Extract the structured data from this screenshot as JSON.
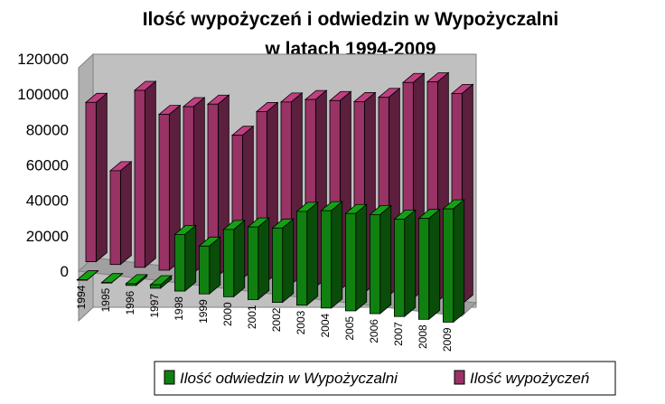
{
  "chart_data": {
    "type": "bar",
    "title_lines": [
      "Ilość wypożyczeń i odwiedzin w Wypożyczalni",
      "w latach 1994-2009"
    ],
    "categories": [
      "1994",
      "1995",
      "1996",
      "1997",
      "1998",
      "1999",
      "2000",
      "2001",
      "2002",
      "2003",
      "2004",
      "2005",
      "2006",
      "2007",
      "2008",
      "2009"
    ],
    "y_ticks": [
      "0",
      "20000",
      "40000",
      "60000",
      "80000",
      "100000",
      "120000"
    ],
    "ylim": [
      0,
      120000
    ],
    "series": [
      {
        "name": "Ilość odwiedzin w Wypożyczalni",
        "color": "#108010",
        "values": [
          0,
          0,
          1000,
          2000,
          32000,
          27000,
          38000,
          41000,
          42000,
          53000,
          55000,
          55000,
          56000,
          55000,
          57000,
          64000
        ]
      },
      {
        "name": "Ilość wypożyczeń",
        "color": "#993366",
        "values": [
          90000,
          53000,
          100000,
          88000,
          94000,
          97000,
          81000,
          96000,
          103000,
          106000,
          107000,
          108000,
          112000,
          122000,
          124000,
          119000
        ]
      }
    ],
    "legend_position": "bottom",
    "grid": false,
    "chart_style": "3d-clustered-bar"
  }
}
